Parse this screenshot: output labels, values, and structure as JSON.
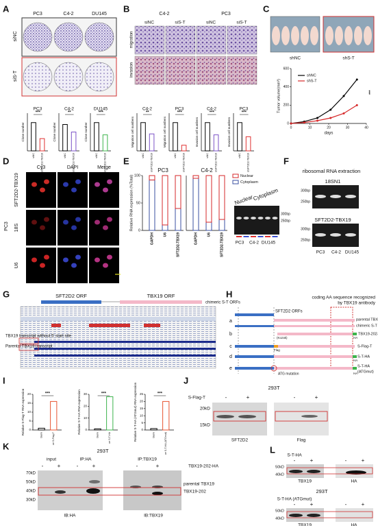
{
  "A": {
    "letter": "A",
    "columns": [
      "PC3",
      "C4-2",
      "DU145"
    ],
    "rows": [
      "siNC",
      "siS-T"
    ],
    "charts": [
      {
        "title": "PC3",
        "ylabel": "Clone number",
        "categories": [
          "siNC",
          "siSFT2D2-TBX19"
        ],
        "values": [
          300,
          130
        ],
        "ylim": [
          0,
          400
        ],
        "colors": [
          "#000000",
          "#e03030"
        ],
        "significance": "***"
      },
      {
        "title": "C4-2",
        "ylabel": "Clone number",
        "categories": [
          "siNC",
          "siSFT2D2-TBX19"
        ],
        "values": [
          280,
          200
        ],
        "ylim": [
          0,
          400
        ],
        "colors": [
          "#000000",
          "#7b52c7"
        ],
        "significance": "**"
      },
      {
        "title": "DU145",
        "ylabel": "Clone number",
        "categories": [
          "siNC",
          "siSFT2D2-TBX19"
        ],
        "values": [
          300,
          170
        ],
        "ylim": [
          0,
          400
        ],
        "colors": [
          "#000000",
          "#3cb44b"
        ],
        "significance": "***"
      }
    ]
  },
  "B": {
    "letter": "B",
    "columns": [
      "C4-2",
      "PC3"
    ],
    "conditions": [
      "siNC",
      "siS-T",
      "siNC",
      "siS-T"
    ],
    "rows": [
      "migration",
      "invasion"
    ],
    "charts": [
      {
        "title": "C4-2",
        "ylabel": "Migration cell numbers",
        "categories": [
          "siNC",
          "siSFT2D2-TBX19"
        ],
        "values": [
          300,
          180
        ],
        "ylim": [
          0,
          400
        ],
        "colors": [
          "#000000",
          "#7b52c7"
        ],
        "significance": "**"
      },
      {
        "title": "PC3",
        "ylabel": "Migration cell numbers",
        "categories": [
          "siNC",
          "siSFT2D2-TBX19"
        ],
        "values": [
          300,
          60
        ],
        "ylim": [
          0,
          400
        ],
        "colors": [
          "#000000",
          "#e03030"
        ],
        "significance": "***"
      },
      {
        "title": "C4-2",
        "ylabel": "Invasion cell numbers",
        "categories": [
          "siNC",
          "siSFT2D2-TBX19"
        ],
        "values": [
          300,
          170
        ],
        "ylim": [
          0,
          400
        ],
        "colors": [
          "#000000",
          "#7b52c7"
        ],
        "significance": "***"
      },
      {
        "title": "PC3",
        "ylabel": "Invasion cell numbers",
        "categories": [
          "siNC",
          "siSFT2D2-TBX19"
        ],
        "values": [
          300,
          150
        ],
        "ylim": [
          0,
          400
        ],
        "colors": [
          "#000000",
          "#e03030"
        ],
        "significance": "***"
      }
    ]
  },
  "C": {
    "letter": "C",
    "groups": [
      "shNC",
      "shS-T"
    ],
    "chart": {
      "type": "line",
      "ylabel": "Tumor volume(mm³)",
      "xlabel": "days",
      "x": [
        0,
        7,
        14,
        21,
        28,
        35
      ],
      "series": [
        {
          "name": "shNC",
          "color": "#000000",
          "values": [
            0,
            20,
            60,
            150,
            300,
            480
          ]
        },
        {
          "name": "shS-T",
          "color": "#d62728",
          "values": [
            0,
            10,
            30,
            60,
            110,
            200
          ]
        }
      ],
      "xlim": [
        0,
        40
      ],
      "xticks": [
        0,
        10,
        20,
        30,
        40
      ],
      "ylim": [
        0,
        600
      ],
      "yticks": [
        0,
        200,
        400,
        600
      ],
      "significance": "***"
    }
  },
  "D": {
    "letter": "D",
    "columns": [
      "Cy3",
      "DAPI",
      "Merge"
    ],
    "rows": [
      "SFT2D2-TBX19",
      "18S",
      "U6"
    ],
    "cell_line": "PC3"
  },
  "E": {
    "letter": "E",
    "chart": {
      "type": "bar",
      "ylabel": "Relative RNA expression (%Total)",
      "categories": [
        "GAPDH",
        "U6",
        "SFT2D2-TBX19"
      ],
      "ylim": [
        0,
        100
      ],
      "yticks": [
        0,
        50,
        100
      ],
      "groups": [
        {
          "title": "PC3",
          "series": [
            {
              "name": "Nuclear",
              "color": "#d62728",
              "values": [
                8,
                90,
                60
              ]
            },
            {
              "name": "Cytoplasm",
              "color": "#3a4fa0",
              "values": [
                92,
                10,
                40
              ]
            }
          ]
        },
        {
          "title": "C4-2",
          "series": [
            {
              "name": "Nuclear",
              "color": "#d62728",
              "values": [
                5,
                85,
                80
              ]
            },
            {
              "name": "Cytoplasm",
              "color": "#3a4fa0",
              "values": [
                95,
                15,
                20
              ]
            }
          ]
        }
      ]
    },
    "gel": {
      "labels": [
        "Nuclear",
        "Cytoplasm"
      ],
      "markers": [
        "300bp",
        "250bp"
      ],
      "lanes": [
        "PC3",
        "C4-2",
        "DU145"
      ]
    }
  },
  "F": {
    "letter": "F",
    "title": "ribosomal RNA extraction",
    "gels": [
      {
        "label": "18SN1",
        "markers": [
          "300bp",
          "250bp"
        ]
      },
      {
        "label": "SFT2D2-TBX19",
        "markers": [
          "300bp",
          "250bp"
        ]
      }
    ],
    "lanes": [
      "PC3",
      "C4-2",
      "DU145"
    ]
  },
  "G": {
    "letter": "G",
    "orfs": [
      "SFT2D2 ORF",
      "TBX19 ORF",
      "chimeric S-T ORFs"
    ],
    "annotations": [
      "TBX19 transcript without 5' start site",
      "Parental TBX19 transcript"
    ]
  },
  "H": {
    "letter": "H",
    "note": [
      "coding AA sequence recognized",
      "by TBX19 antibody"
    ],
    "keys": [
      "a",
      "b",
      "c",
      "d",
      "e"
    ],
    "labels": [
      "SFT2D2 ORFs",
      "parental TBX19 ORFs",
      "chimeric S-T ORFs",
      "TBX19-202-HA",
      "S-Flag-T",
      "S-T-HA",
      "S-T-HA",
      "(ATGmut)"
    ],
    "tags": [
      "HA",
      "Flag",
      "HA",
      "HA"
    ],
    "kozak": "(Kozak)",
    "mutation": "ATG mutation"
  },
  "I": {
    "letter": "I",
    "charts": [
      {
        "ylabel": "Relative S-Flag-T RNA expression",
        "categories": [
          "blank",
          "oe S-Flag-T"
        ],
        "values": [
          1,
          16
        ],
        "ylim": [
          0,
          20
        ],
        "yticks": [
          0,
          5,
          10,
          15,
          20
        ],
        "color": "#e8532f",
        "significance": "***"
      },
      {
        "ylabel": "Relative S-T-HA RNA expression",
        "categories": [
          "blank",
          "oe S-T-HA"
        ],
        "values": [
          1,
          28
        ],
        "ylim": [
          0,
          30
        ],
        "yticks": [
          0,
          10,
          20,
          30
        ],
        "color": "#3cb44b",
        "significance": "***"
      },
      {
        "ylabel": "Relative S-T-HA (ATGmut) RNA expression",
        "categories": [
          "blank",
          "oe S-T-HA (ATGmut)"
        ],
        "values": [
          1,
          20
        ],
        "ylim": [
          0,
          25
        ],
        "yticks": [
          0,
          5,
          10,
          15,
          20,
          25
        ],
        "color": "#e8532f",
        "significance": "***"
      }
    ]
  },
  "J": {
    "letter": "J",
    "cell_line": "293T",
    "construct": "S-Flag-T",
    "lanes": [
      "-",
      "+",
      "-",
      "+"
    ],
    "markers": [
      "20kD",
      "15kD"
    ],
    "blots": [
      "SFT2D2",
      "Flag"
    ]
  },
  "K": {
    "letter": "K",
    "cell_line": "293T",
    "groups": [
      "input",
      "IP:HA",
      "IP:TBX19"
    ],
    "construct": "TBX19-202-HA",
    "lanes": [
      "-",
      "+",
      "-",
      "+",
      "-",
      "+"
    ],
    "markers": [
      "70kD",
      "50kD",
      "40kD",
      "30kD"
    ],
    "bands": [
      "parental TBX19",
      "TBX19-202"
    ],
    "blots": [
      "IB:HA",
      "IB:TBX19"
    ]
  },
  "L": {
    "letter": "L",
    "blots": [
      {
        "construct": "S-T-HA",
        "lanes": [
          "-",
          "+",
          "-",
          "+"
        ],
        "markers": [
          "50kD",
          "40kD"
        ],
        "labels": [
          "TBX19",
          "HA"
        ]
      },
      {
        "cell_line": "293T",
        "construct": "S-T-HA (ATGmut)",
        "lanes": [
          "-",
          "+",
          "-",
          "+"
        ],
        "markers": [
          "50kD",
          "40kD"
        ],
        "labels": [
          "TBX19",
          "HA"
        ]
      }
    ]
  }
}
